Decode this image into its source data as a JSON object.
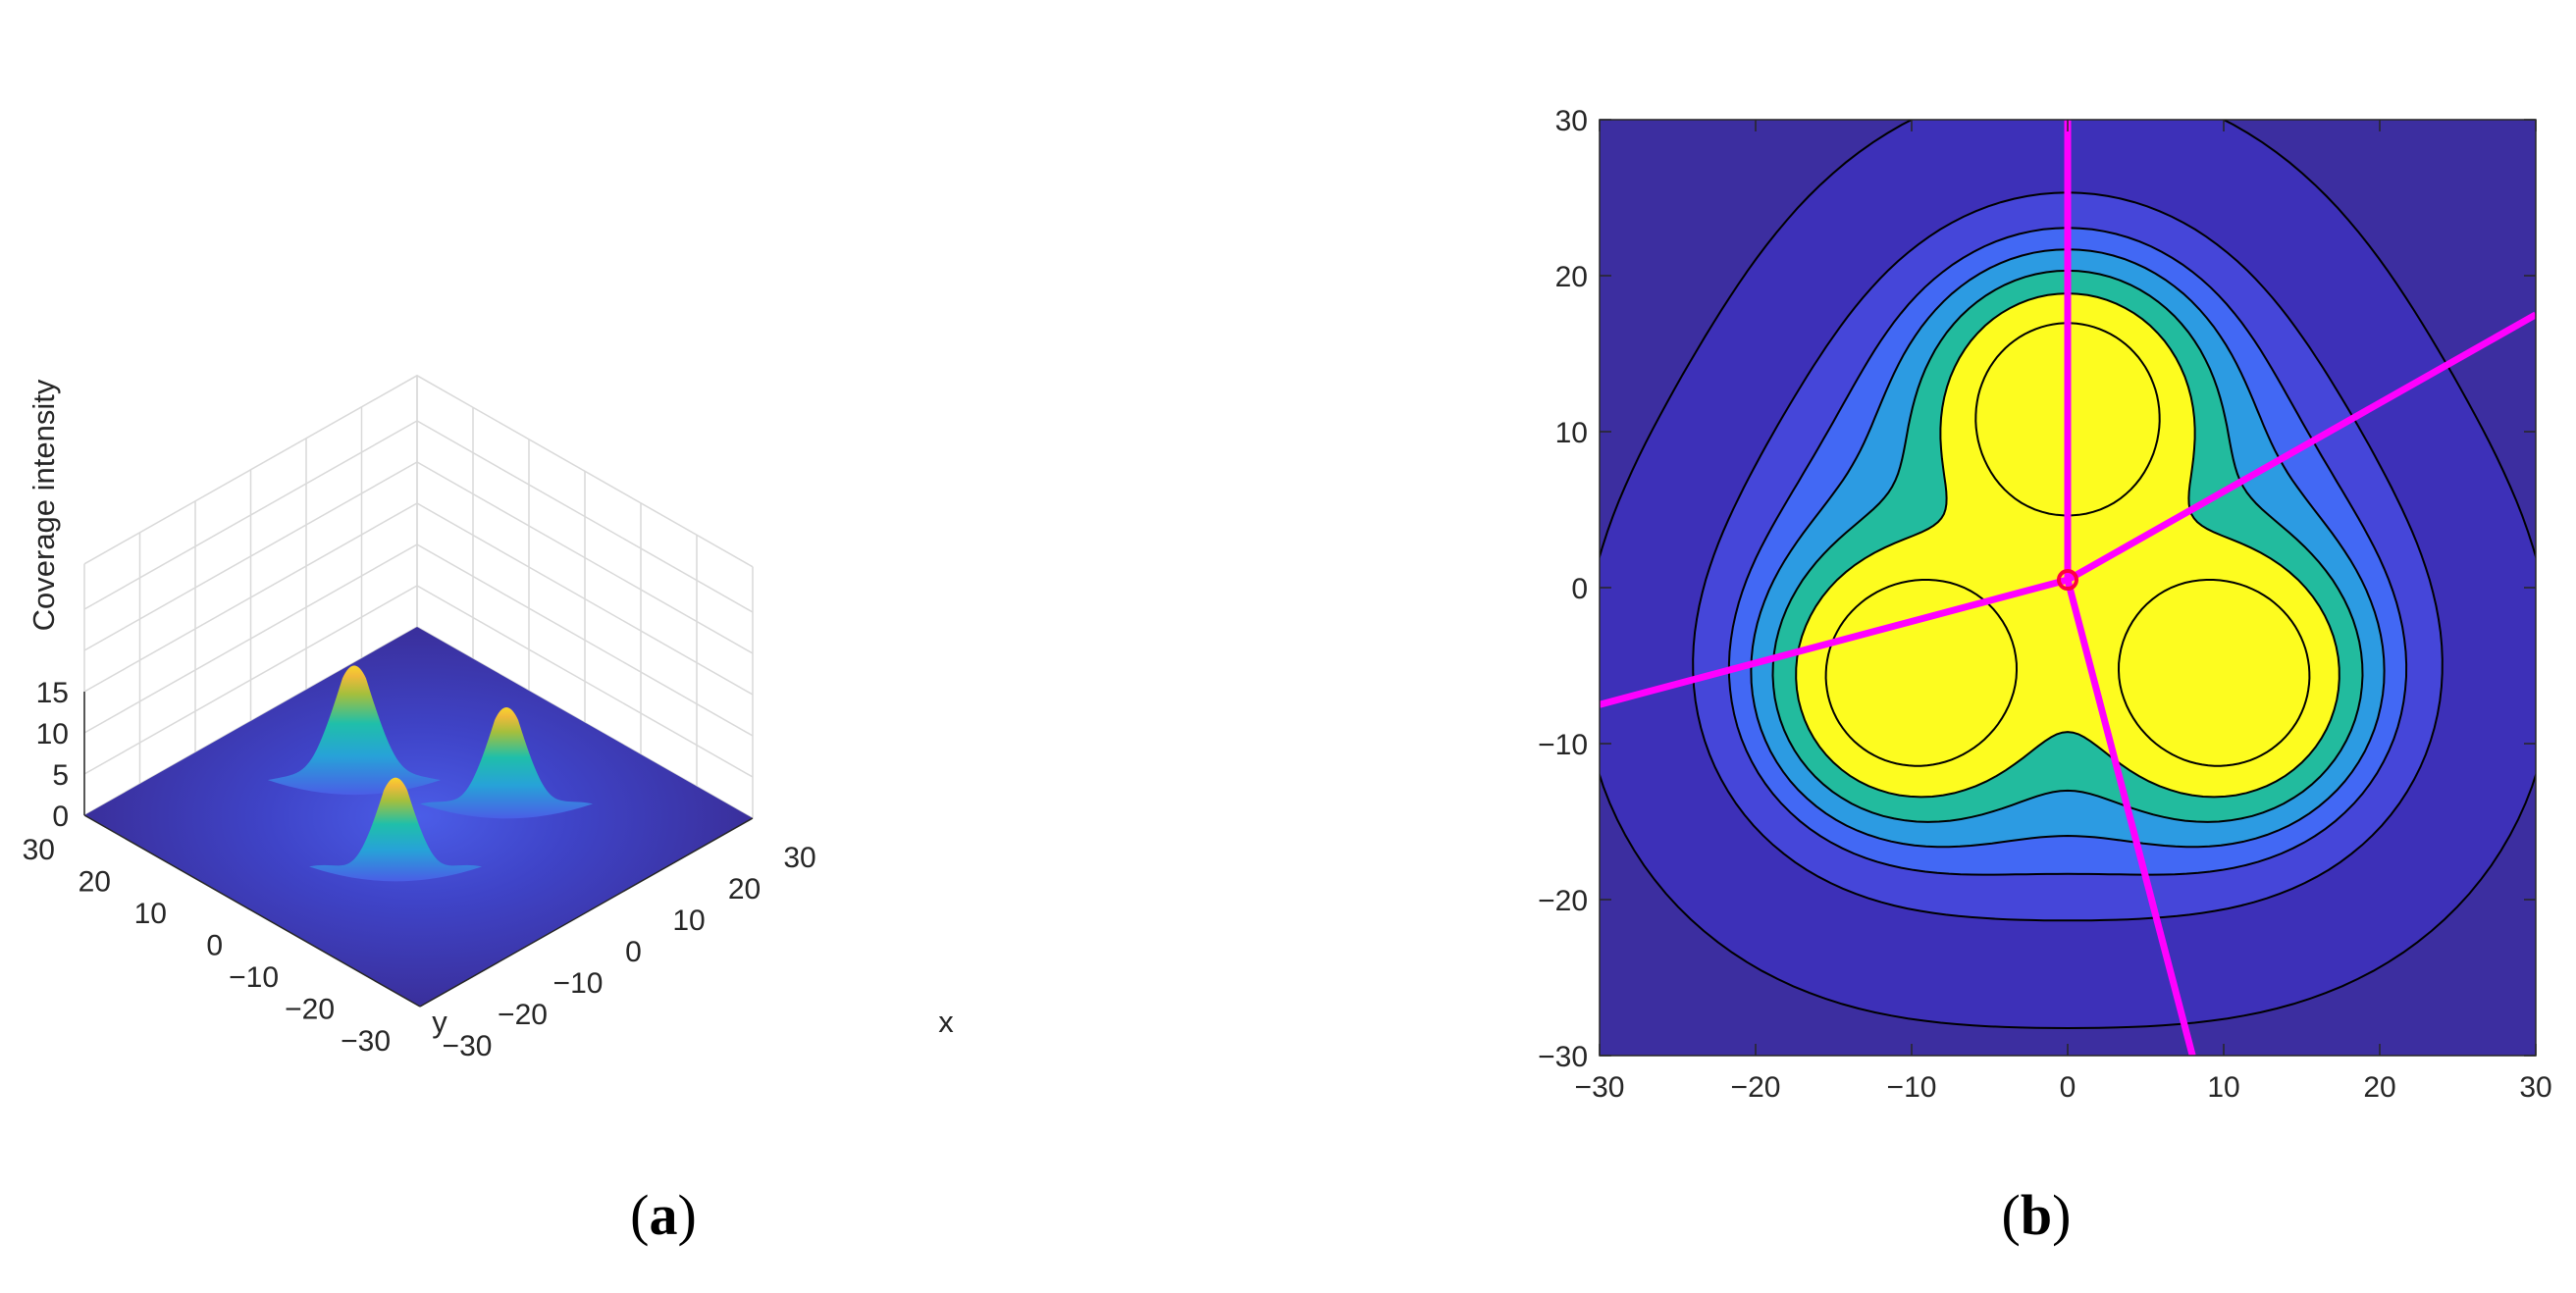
{
  "chart_data": [
    {
      "panel": "(a)",
      "type": "surface3d",
      "title": "",
      "xlabel": "x",
      "ylabel": "y",
      "zlabel": "Coverage intensity",
      "xlim": [
        -30,
        30
      ],
      "ylim": [
        -30,
        30
      ],
      "zlim": [
        0,
        15
      ],
      "xticks": [
        -30,
        -20,
        -10,
        0,
        10,
        20,
        30
      ],
      "yticks": [
        -30,
        -20,
        -10,
        0,
        10,
        20,
        30
      ],
      "zticks": [
        0,
        5,
        10,
        15
      ],
      "xtick_labels": [
        "−30",
        "−20",
        "−10",
        "0",
        "10",
        "20",
        "30"
      ],
      "ytick_labels": [
        "−30",
        "−20",
        "−10",
        "0",
        "10",
        "20",
        "30"
      ],
      "ztick_labels": [
        "0",
        "5",
        "10",
        "15"
      ],
      "grid": true,
      "colormap": "parula",
      "peaks": [
        {
          "x": 0,
          "y": 11.5,
          "height": 14.5
        },
        {
          "x": -10,
          "y": -5.8,
          "height": 11.4
        },
        {
          "x": 10,
          "y": -5.8,
          "height": 12.3
        }
      ]
    },
    {
      "panel": "(b)",
      "type": "contour",
      "title": "",
      "xlim": [
        -30,
        30
      ],
      "ylim": [
        -30,
        30
      ],
      "xticks": [
        -30,
        -20,
        -10,
        0,
        10,
        20,
        30
      ],
      "yticks": [
        -30,
        -20,
        -10,
        0,
        10,
        20,
        30
      ],
      "xtick_labels": [
        "−30",
        "−20",
        "−10",
        "0",
        "10",
        "20",
        "30"
      ],
      "ytick_labels": [
        "−30",
        "−20",
        "−10",
        "0",
        "10",
        "20",
        "30"
      ],
      "contour_levels": [
        0.02,
        0.6,
        1.8,
        2.6,
        3.4,
        4.6,
        6.5,
        10
      ],
      "fill_colors": [
        "#3c2ea0",
        "#3d30b8",
        "#4546d9",
        "#4268f4",
        "#2c9be2",
        "#22bb9e",
        "#fdfc1f"
      ],
      "contour_line_color": "#000000",
      "centers": [
        {
          "x": 0,
          "y": 11.5
        },
        {
          "x": -10,
          "y": -5.8
        },
        {
          "x": 10,
          "y": -5.8
        }
      ],
      "centroid": {
        "x": 0,
        "y": 0.5
      },
      "partition_line_color": "#ff00ff",
      "partition_lines": [
        {
          "from": [
            0,
            0.5
          ],
          "to": [
            0,
            30
          ]
        },
        {
          "from": [
            0,
            0.5
          ],
          "to": [
            30,
            17.5
          ]
        },
        {
          "from": [
            0,
            0.5
          ],
          "to": [
            -30,
            -7.5
          ]
        },
        {
          "from": [
            0,
            0.5
          ],
          "to": [
            8,
            -30
          ]
        }
      ]
    }
  ],
  "panel_labels": {
    "a": {
      "open": "(",
      "letter": "a",
      "close": ")"
    },
    "b": {
      "open": "(",
      "letter": "b",
      "close": ")"
    }
  }
}
